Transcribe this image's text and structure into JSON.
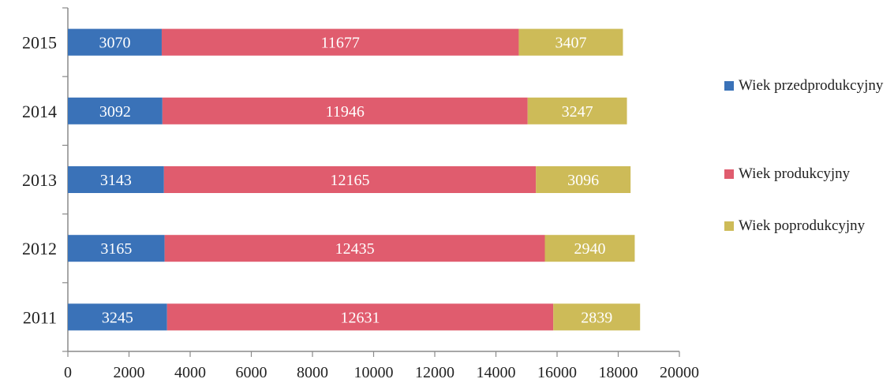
{
  "chart_data": {
    "type": "bar",
    "orientation": "horizontal",
    "stacked": true,
    "title": "",
    "xlabel": "",
    "ylabel": "",
    "categories": [
      "2015",
      "2014",
      "2013",
      "2012",
      "2011"
    ],
    "series": [
      {
        "name": "Wiek przedprodukcyjny",
        "color": "#3a72b8",
        "values": [
          3070,
          3092,
          3143,
          3165,
          3245
        ]
      },
      {
        "name": "Wiek produkcyjny",
        "color": "#e05c6e",
        "values": [
          11677,
          11946,
          12165,
          12435,
          12631
        ]
      },
      {
        "name": "Wiek poprodukcyjny",
        "color": "#cdbb58",
        "values": [
          3407,
          3247,
          3096,
          2940,
          2839
        ]
      }
    ],
    "xlim": [
      0,
      20000
    ],
    "xticks": [
      "0",
      "2000",
      "4000",
      "6000",
      "8000",
      "10000",
      "12000",
      "14000",
      "16000",
      "18000",
      "20000"
    ],
    "legend_position": "right",
    "grid": false,
    "data_labels": true
  }
}
